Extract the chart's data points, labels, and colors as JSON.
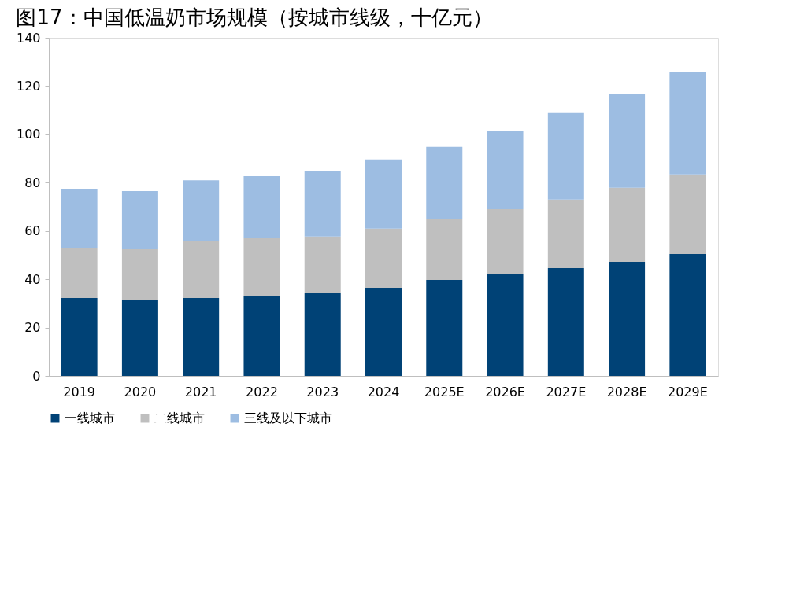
{
  "chart_data": {
    "type": "bar",
    "stacked": true,
    "title": "图17：中国低温奶市场规模（按城市线级，十亿元）",
    "categories": [
      "2019",
      "2020",
      "2021",
      "2022",
      "2023",
      "2024",
      "2025E",
      "2026E",
      "2027E",
      "2028E",
      "2029E"
    ],
    "series": [
      {
        "name": "一线城市",
        "color": "#004276",
        "values": [
          32.2,
          31.6,
          32.2,
          33.2,
          34.5,
          36.5,
          39.7,
          42.3,
          44.6,
          47.2,
          50.5
        ]
      },
      {
        "name": "二线城市",
        "color": "#bfbfbf",
        "values": [
          20.6,
          20.8,
          23.8,
          23.8,
          23.2,
          24.5,
          25.4,
          26.7,
          28.4,
          30.7,
          32.9
        ]
      },
      {
        "name": "三线及以下城市",
        "color": "#9dbde2",
        "values": [
          24.7,
          24.1,
          25.0,
          25.7,
          27.0,
          28.6,
          29.7,
          32.3,
          35.8,
          39.0,
          42.6
        ]
      }
    ],
    "ylim": [
      0,
      140
    ],
    "yticks": [
      0,
      20,
      40,
      60,
      80,
      100,
      120,
      140
    ],
    "grid": false,
    "legend": "bottom"
  }
}
